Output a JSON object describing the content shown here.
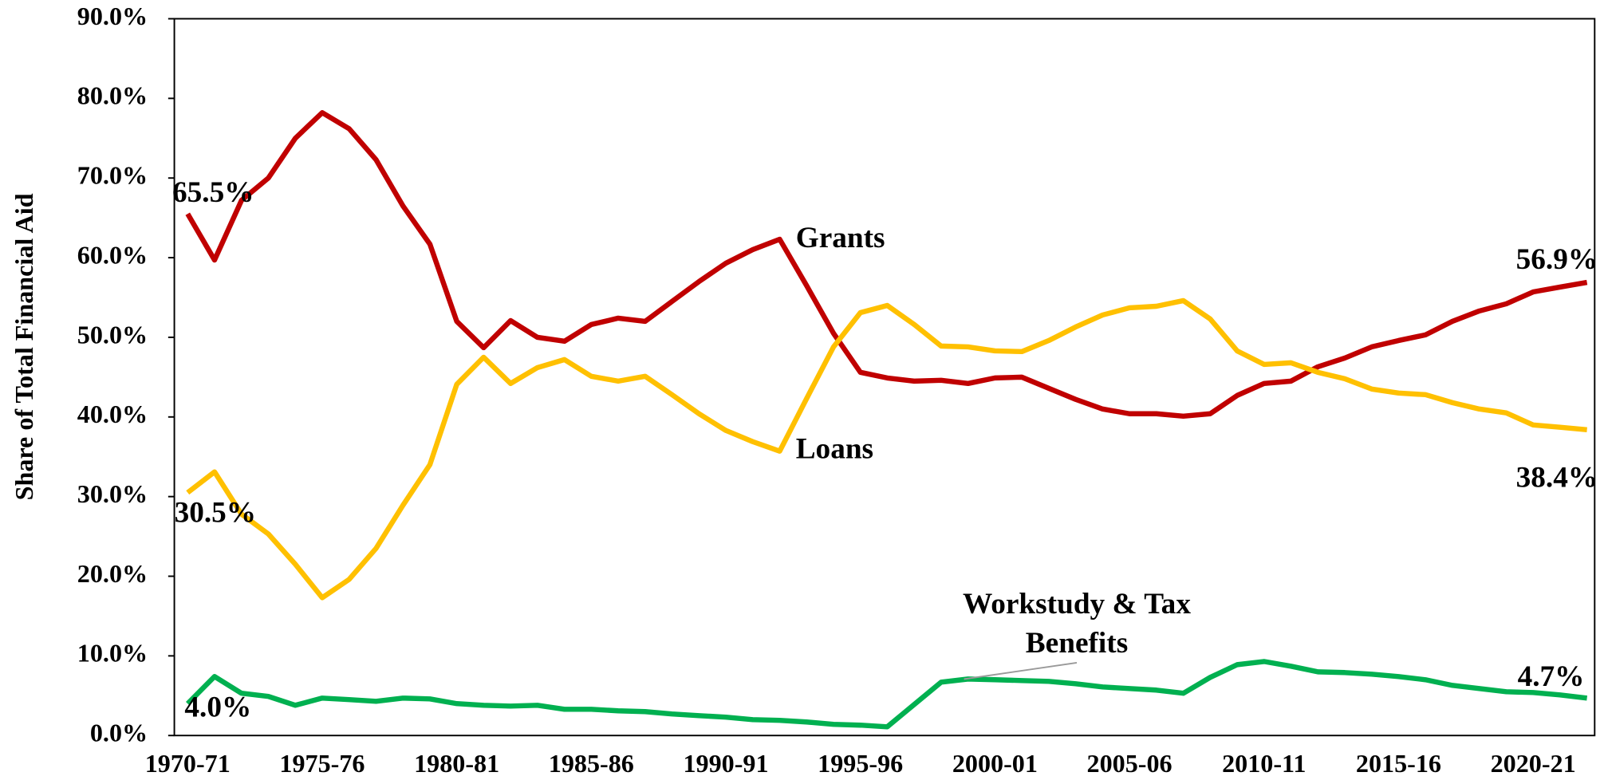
{
  "chart_data": {
    "type": "line",
    "y_label": "Share of Total Financial Aid",
    "categories": [
      "1970-71",
      null,
      null,
      null,
      null,
      "1975-76",
      null,
      null,
      null,
      null,
      "1980-81",
      null,
      null,
      null,
      null,
      "1985-86",
      null,
      null,
      null,
      null,
      "1990-91",
      null,
      null,
      null,
      null,
      "1995-96",
      null,
      null,
      null,
      null,
      "2000-01",
      null,
      null,
      null,
      null,
      "2005-06",
      null,
      null,
      null,
      null,
      "2010-11",
      null,
      null,
      null,
      null,
      "2015-16",
      null,
      null,
      null,
      null,
      "2020-21",
      null,
      null
    ],
    "ylim": [
      0,
      90
    ],
    "yticks": [
      {
        "value": 0,
        "label": "0.0%"
      },
      {
        "value": 10,
        "label": "10.0%"
      },
      {
        "value": 20,
        "label": "20.0%"
      },
      {
        "value": 30,
        "label": "30.0%"
      },
      {
        "value": 40,
        "label": "40.0%"
      },
      {
        "value": 50,
        "label": "50.0%"
      },
      {
        "value": 60,
        "label": "60.0%"
      },
      {
        "value": 70,
        "label": "70.0%"
      },
      {
        "value": 80,
        "label": "80.0%"
      },
      {
        "value": 90,
        "label": "90.0%"
      }
    ],
    "grid": false,
    "series": [
      {
        "name": "Grants",
        "color": "#c00000",
        "values": [
          65.5,
          59.7,
          67.2,
          70.0,
          75.0,
          78.2,
          76.2,
          72.3,
          66.5,
          61.7,
          52.0,
          48.7,
          52.1,
          50.0,
          49.5,
          51.6,
          52.4,
          52.0,
          54.5,
          57.0,
          59.3,
          61.0,
          62.3,
          56.5,
          50.5,
          45.6,
          44.9,
          44.5,
          44.6,
          44.2,
          44.9,
          45.0,
          43.6,
          42.2,
          41.0,
          40.4,
          40.4,
          40.1,
          40.4,
          42.7,
          44.2,
          44.5,
          46.3,
          47.4,
          48.8,
          49.6,
          50.3,
          52.0,
          53.3,
          54.2,
          55.7,
          56.3,
          56.9
        ],
        "value_labels": [
          "65.5%",
          null,
          null,
          null,
          null,
          null,
          null,
          null,
          null,
          null,
          null,
          null,
          null,
          null,
          null,
          null,
          null,
          null,
          null,
          null,
          null,
          null,
          null,
          null,
          null,
          null,
          null,
          null,
          null,
          null,
          null,
          null,
          null,
          null,
          null,
          null,
          null,
          null,
          null,
          null,
          null,
          null,
          null,
          null,
          null,
          null,
          null,
          null,
          null,
          null,
          null,
          null,
          "56.9%"
        ]
      },
      {
        "name": "Loans",
        "color": "#ffc000",
        "values": [
          30.5,
          33.1,
          27.8,
          25.3,
          21.5,
          17.3,
          19.6,
          23.5,
          28.9,
          34.0,
          44.1,
          47.5,
          44.2,
          46.2,
          47.2,
          45.1,
          44.5,
          45.1,
          42.8,
          40.4,
          38.3,
          36.9,
          35.7,
          42.3,
          48.8,
          53.1,
          54.0,
          51.6,
          48.9,
          48.8,
          48.3,
          48.2,
          49.6,
          51.3,
          52.8,
          53.7,
          53.9,
          54.6,
          52.3,
          48.3,
          46.6,
          46.8,
          45.6,
          44.8,
          43.5,
          43.0,
          42.8,
          41.8,
          41.0,
          40.5,
          39.0,
          38.7,
          38.4
        ],
        "value_labels": [
          "30.5%",
          null,
          null,
          null,
          null,
          null,
          null,
          null,
          null,
          null,
          null,
          null,
          null,
          null,
          null,
          null,
          null,
          null,
          null,
          null,
          null,
          null,
          null,
          null,
          null,
          null,
          null,
          null,
          null,
          null,
          null,
          null,
          null,
          null,
          null,
          null,
          null,
          null,
          null,
          null,
          null,
          null,
          null,
          null,
          null,
          null,
          null,
          null,
          null,
          null,
          null,
          null,
          "38.4%"
        ]
      },
      {
        "name": "Workstudy & Tax Benefits",
        "color": "#00b050",
        "values": [
          4.0,
          7.4,
          5.3,
          4.9,
          3.8,
          4.7,
          4.5,
          4.3,
          4.7,
          4.6,
          4.0,
          3.8,
          3.7,
          3.8,
          3.3,
          3.3,
          3.1,
          3.0,
          2.7,
          2.5,
          2.3,
          2.0,
          1.9,
          1.7,
          1.4,
          1.3,
          1.1,
          3.9,
          6.7,
          7.1,
          7.0,
          6.9,
          6.8,
          6.5,
          6.1,
          5.9,
          5.7,
          5.3,
          7.3,
          8.9,
          9.3,
          8.7,
          8.0,
          7.9,
          7.7,
          7.4,
          7.0,
          6.3,
          5.9,
          5.5,
          5.4,
          5.1,
          4.7
        ],
        "value_labels": [
          "4.0%",
          null,
          null,
          null,
          null,
          null,
          null,
          null,
          null,
          null,
          null,
          null,
          null,
          null,
          null,
          null,
          null,
          null,
          null,
          null,
          null,
          null,
          null,
          null,
          null,
          null,
          null,
          null,
          null,
          null,
          null,
          null,
          null,
          null,
          null,
          null,
          null,
          null,
          null,
          null,
          null,
          null,
          null,
          null,
          null,
          null,
          null,
          null,
          null,
          null,
          null,
          null,
          "4.7%"
        ]
      }
    ]
  }
}
